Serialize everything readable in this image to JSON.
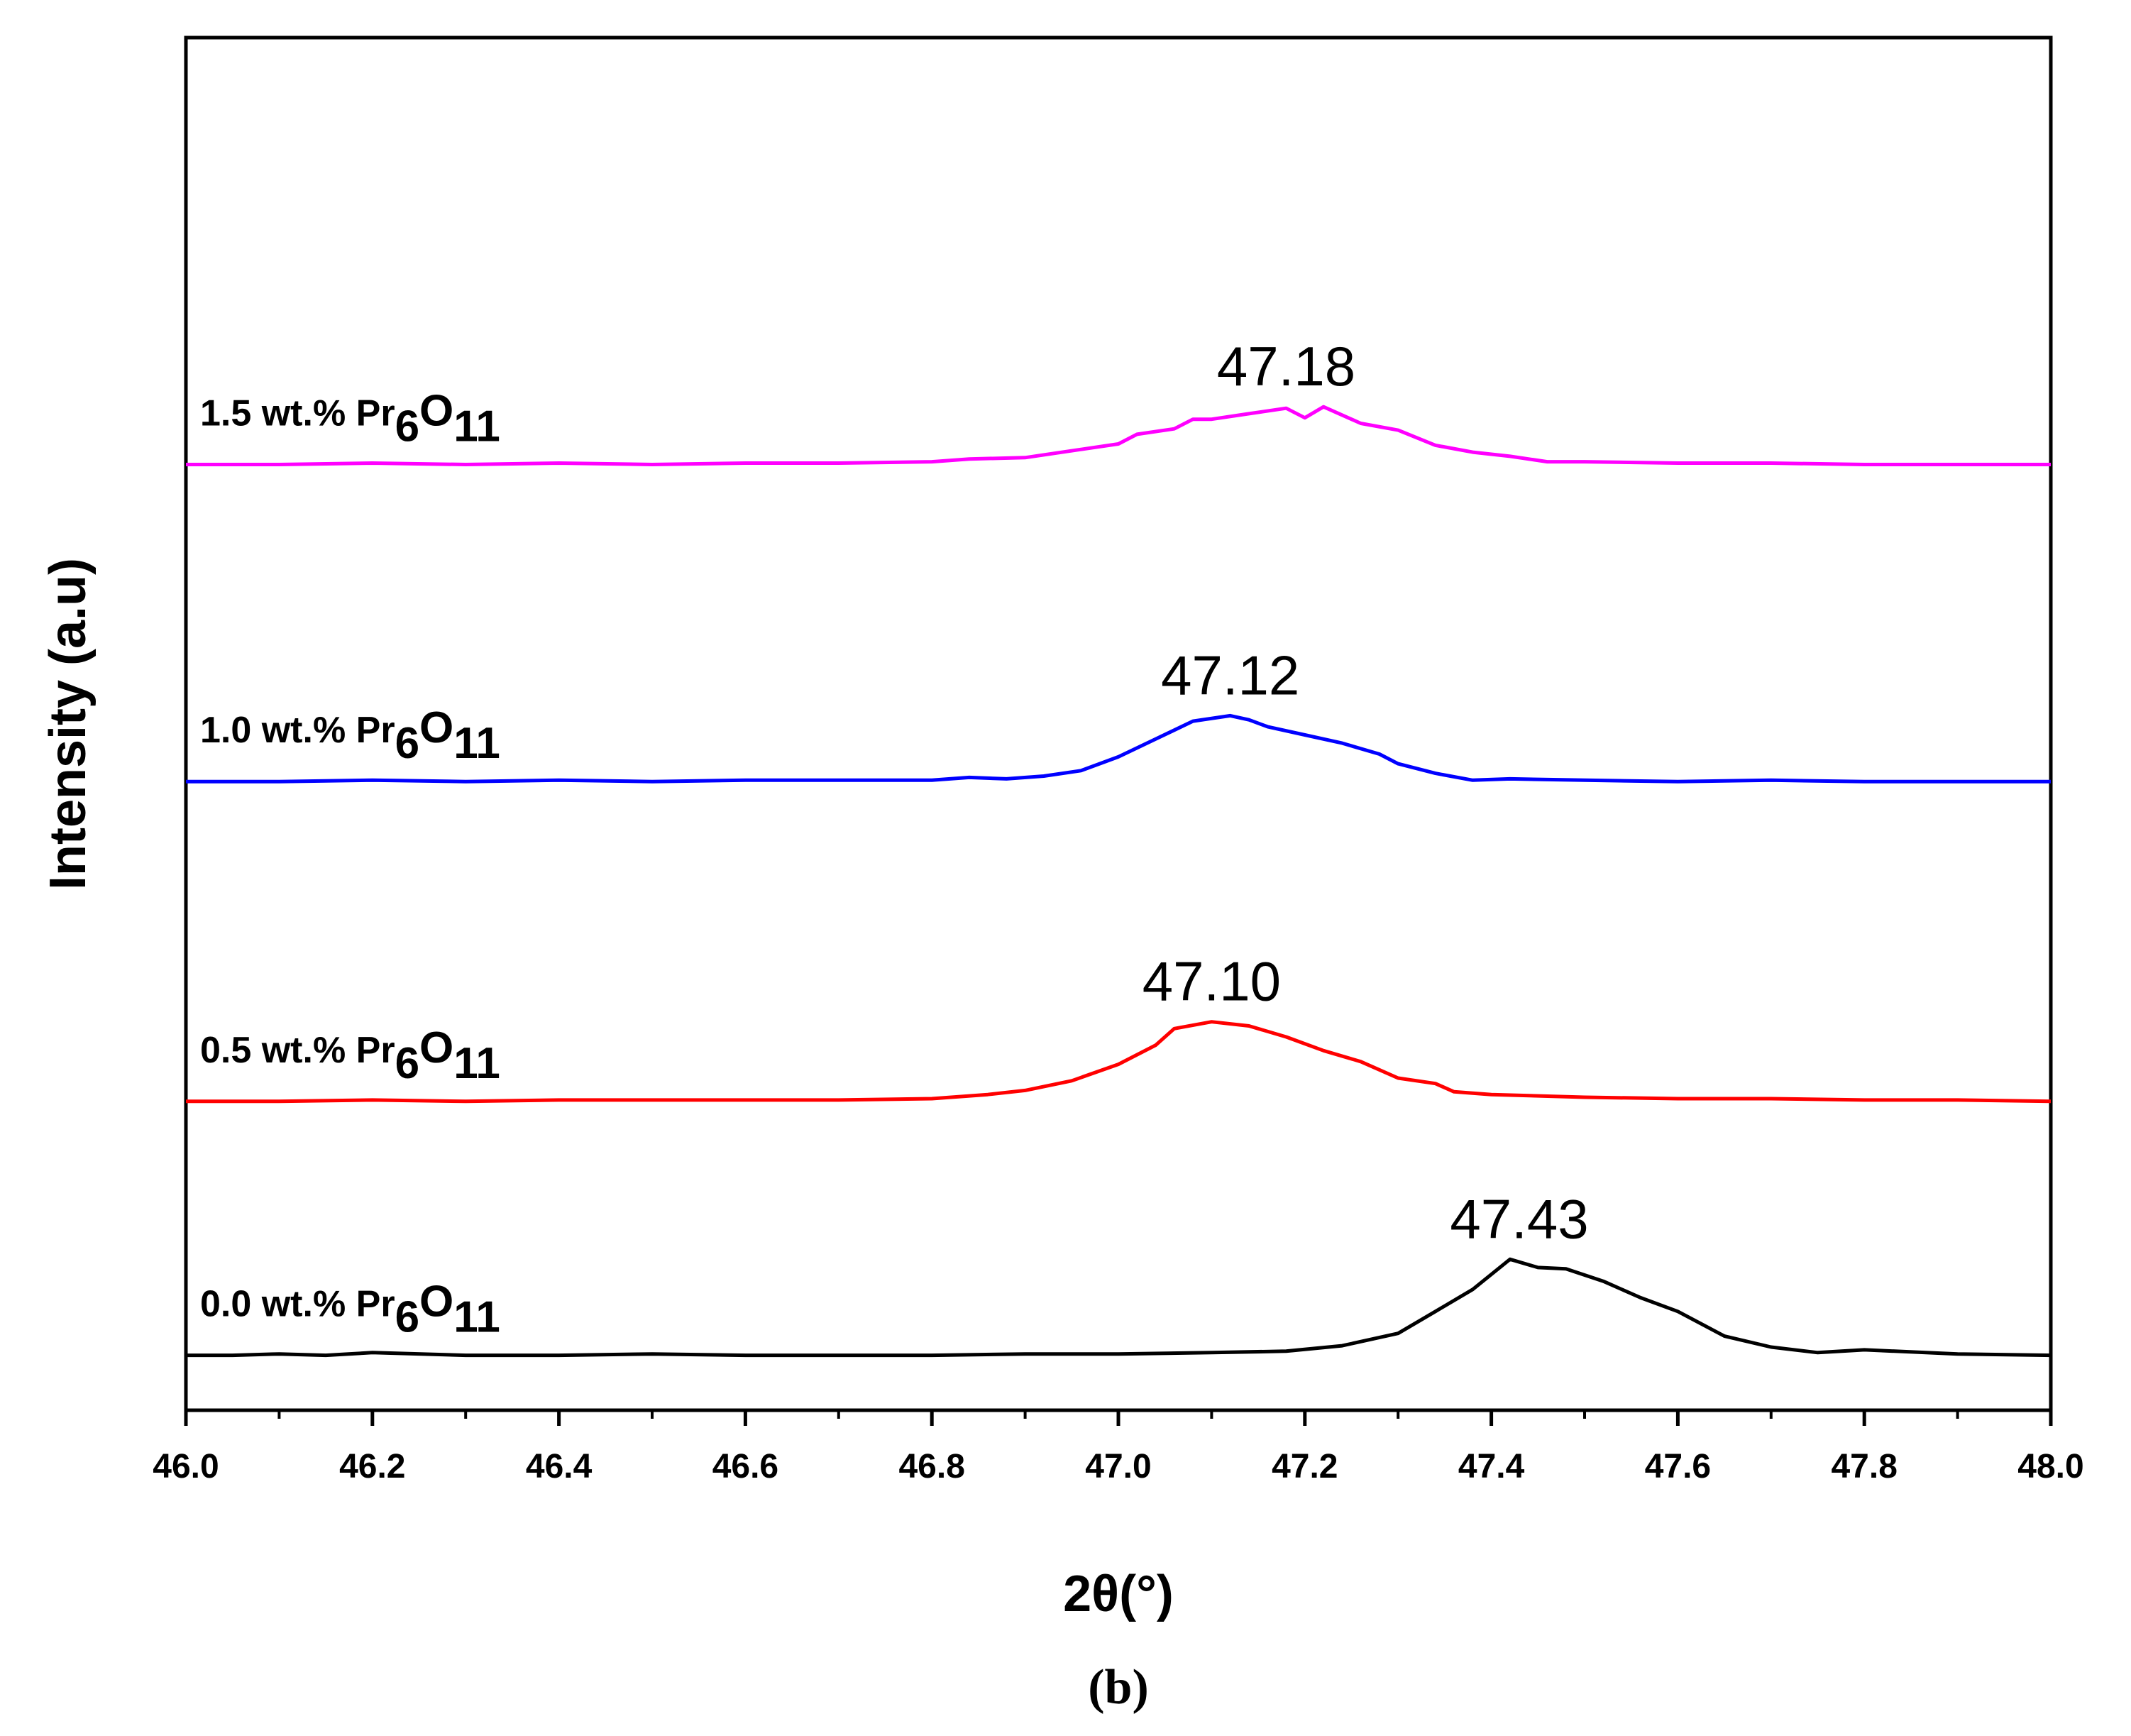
{
  "chart_data": {
    "type": "line",
    "title": "",
    "xlabel": "2θ(°)",
    "ylabel": "Intensity (a.u)",
    "caption": "(b)",
    "xlim": [
      46.0,
      48.0
    ],
    "ylim": [
      0,
      100
    ],
    "grid": false,
    "x_ticks": [
      "46.0",
      "46.2",
      "46.4",
      "46.6",
      "46.8",
      "47.0",
      "47.2",
      "47.4",
      "47.6",
      "47.8",
      "48.0"
    ],
    "x_tick_values": [
      46.0,
      46.2,
      46.4,
      46.6,
      46.8,
      47.0,
      47.2,
      47.4,
      47.6,
      47.8,
      48.0
    ],
    "series": [
      {
        "name": "0.0 wt.% Pr6O11",
        "label_prefix": "0.0 wt.% Pr",
        "label_sub1": "6",
        "label_mid": "O",
        "label_sub2": "11",
        "color": "#000000",
        "peak_label": "47.43",
        "peak_x": 47.43,
        "x": [
          46.0,
          46.05,
          46.1,
          46.15,
          46.2,
          46.3,
          46.4,
          46.5,
          46.6,
          46.7,
          46.8,
          46.9,
          47.0,
          47.1,
          47.18,
          47.24,
          47.3,
          47.34,
          47.38,
          47.42,
          47.45,
          47.48,
          47.52,
          47.56,
          47.6,
          47.65,
          47.7,
          47.75,
          47.8,
          47.9,
          48.0
        ],
        "y": [
          4.0,
          4.0,
          4.1,
          4.0,
          4.2,
          4.0,
          4.0,
          4.1,
          4.0,
          4.0,
          4.0,
          4.1,
          4.1,
          4.2,
          4.3,
          4.7,
          5.6,
          7.2,
          8.8,
          11.0,
          10.4,
          10.3,
          9.4,
          8.2,
          7.2,
          5.4,
          4.6,
          4.2,
          4.4,
          4.1,
          4.0
        ]
      },
      {
        "name": "0.5 wt.% Pr6O11",
        "label_prefix": "0.5 wt.% Pr",
        "label_sub1": "6",
        "label_mid": "O",
        "label_sub2": "11",
        "color": "#ff0000",
        "peak_label": "47.10",
        "peak_x": 47.1,
        "x": [
          46.0,
          46.1,
          46.2,
          46.3,
          46.4,
          46.5,
          46.6,
          46.7,
          46.8,
          46.86,
          46.9,
          46.95,
          47.0,
          47.04,
          47.06,
          47.1,
          47.14,
          47.18,
          47.22,
          47.26,
          47.3,
          47.34,
          47.36,
          47.4,
          47.5,
          47.6,
          47.7,
          47.8,
          47.9,
          48.0
        ],
        "y": [
          22.5,
          22.5,
          22.6,
          22.5,
          22.6,
          22.6,
          22.6,
          22.6,
          22.7,
          23.0,
          23.3,
          24.0,
          25.2,
          26.6,
          27.8,
          28.3,
          28.0,
          27.2,
          26.2,
          25.4,
          24.2,
          23.8,
          23.2,
          23.0,
          22.8,
          22.7,
          22.7,
          22.6,
          22.6,
          22.5
        ]
      },
      {
        "name": "1.0 wt.% Pr6O11",
        "label_prefix": "1.0 wt.% Pr",
        "label_sub1": "6",
        "label_mid": "O",
        "label_sub2": "11",
        "color": "#0000ff",
        "peak_label": "47.12",
        "peak_x": 47.12,
        "x": [
          46.0,
          46.1,
          46.2,
          46.3,
          46.4,
          46.5,
          46.6,
          46.7,
          46.8,
          46.84,
          46.88,
          46.92,
          46.96,
          47.0,
          47.04,
          47.08,
          47.12,
          47.14,
          47.16,
          47.2,
          47.24,
          47.28,
          47.3,
          47.34,
          47.38,
          47.42,
          47.5,
          47.6,
          47.7,
          47.8,
          47.9,
          48.0
        ],
        "y": [
          45.8,
          45.8,
          45.9,
          45.8,
          45.9,
          45.8,
          45.9,
          45.9,
          45.9,
          46.1,
          46.0,
          46.2,
          46.6,
          47.6,
          48.9,
          50.2,
          50.6,
          50.3,
          49.8,
          49.2,
          48.6,
          47.8,
          47.1,
          46.4,
          45.9,
          46.0,
          45.9,
          45.8,
          45.9,
          45.8,
          45.8,
          45.8
        ]
      },
      {
        "name": "1.5 wt.% Pr6O11",
        "label_prefix": "1.5 wt.% Pr",
        "label_sub1": "6",
        "label_mid": "O",
        "label_sub2": "11",
        "color": "#ff00ff",
        "peak_label": "47.18",
        "peak_x": 47.18,
        "x": [
          46.0,
          46.1,
          46.2,
          46.3,
          46.4,
          46.5,
          46.6,
          46.7,
          46.8,
          46.84,
          46.9,
          46.96,
          47.0,
          47.02,
          47.06,
          47.08,
          47.1,
          47.14,
          47.18,
          47.2,
          47.22,
          47.26,
          47.3,
          47.34,
          47.38,
          47.42,
          47.46,
          47.5,
          47.6,
          47.7,
          47.8,
          47.9,
          48.0
        ],
        "y": [
          68.9,
          68.9,
          69.0,
          68.9,
          69.0,
          68.9,
          69.0,
          69.0,
          69.1,
          69.3,
          69.4,
          70.0,
          70.4,
          71.1,
          71.5,
          72.2,
          72.2,
          72.6,
          73.0,
          72.3,
          73.1,
          71.9,
          71.4,
          70.3,
          69.8,
          69.5,
          69.1,
          69.1,
          69.0,
          69.0,
          68.9,
          68.9,
          68.9
        ]
      }
    ]
  }
}
